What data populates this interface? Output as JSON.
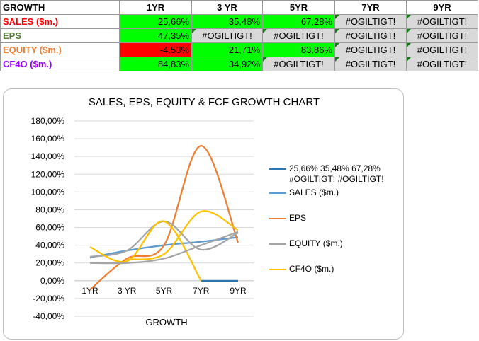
{
  "table": {
    "headers": [
      "GROWTH",
      "1YR",
      "3 YR",
      "5YR",
      "7YR",
      "9YR"
    ],
    "rows": [
      {
        "label": "SALES ($m.)",
        "color": "#ff0000",
        "cells": [
          "25,66%",
          "35,48%",
          "67,28%",
          "#OGILTIGT!",
          "#OGILTIGT!"
        ]
      },
      {
        "label": "EPS",
        "color": "#548235",
        "cells": [
          "47,35%",
          "#OGILTIGT!",
          "#OGILTIGT!",
          "#OGILTIGT!",
          "#OGILTIGT!"
        ]
      },
      {
        "label": "EQUITY ($m.)",
        "color": "#ed7d31",
        "cells": [
          "-4,53%",
          "21,71%",
          "83,86%",
          "#OGILTIGT!",
          "#OGILTIGT!"
        ]
      },
      {
        "label": "CF4O ($m.)",
        "color": "#9900ff",
        "cells": [
          "84,83%",
          "34,92%",
          "#OGILTIGT!",
          "#OGILTIGT!",
          "#OGILTIGT!"
        ]
      }
    ],
    "cell_fills": [
      [
        "green",
        "green",
        "green",
        "gray",
        "gray"
      ],
      [
        "green",
        "gray",
        "gray",
        "gray",
        "gray"
      ],
      [
        "red",
        "green",
        "green",
        "gray",
        "gray"
      ],
      [
        "green",
        "green",
        "gray",
        "gray",
        "gray"
      ]
    ]
  },
  "chart_data": {
    "type": "line",
    "title": "SALES, EPS, EQUITY & FCF GROWTH CHART",
    "xlabel": "GROWTH",
    "ylabel": "",
    "categories": [
      "1YR",
      "3 YR",
      "5YR",
      "7YR",
      "9YR"
    ],
    "ylim": [
      -40,
      180
    ],
    "yticks": [
      "180,00%",
      "160,00%",
      "140,00%",
      "120,00%",
      "100,00%",
      "80,00%",
      "60,00%",
      "40,00%",
      "20,00%",
      "0,00%",
      "-20,00%",
      "-40,00%"
    ],
    "legend_position": "right",
    "series": [
      {
        "name": "25,66% 35,48% 67,28% #OGILTIGT! #OGILTIGT!",
        "color": "#2e75b6",
        "values": [
          null,
          null,
          null,
          0,
          0
        ]
      },
      {
        "name": "SALES ($m.)",
        "color": "#5b9bd5",
        "values": [
          26,
          34,
          40,
          44,
          49
        ]
      },
      {
        "name": "EPS",
        "color": "#ed7d31",
        "values": [
          -10,
          25,
          40,
          152,
          43
        ]
      },
      {
        "name": "EQUITY ($m.)",
        "color": "#a5a5a5",
        "values": [
          27,
          34,
          67,
          35,
          54
        ]
      },
      {
        "name": "CF4O ($m.)",
        "color": "#ffc000",
        "values": [
          38,
          22,
          67,
          0,
          null
        ]
      },
      {
        "name": "",
        "color": "#a5a5a5",
        "values": [
          20,
          20,
          25,
          40,
          55
        ]
      },
      {
        "name": "",
        "color": "#ffc000",
        "values": [
          null,
          24,
          30,
          78,
          57
        ]
      }
    ]
  }
}
